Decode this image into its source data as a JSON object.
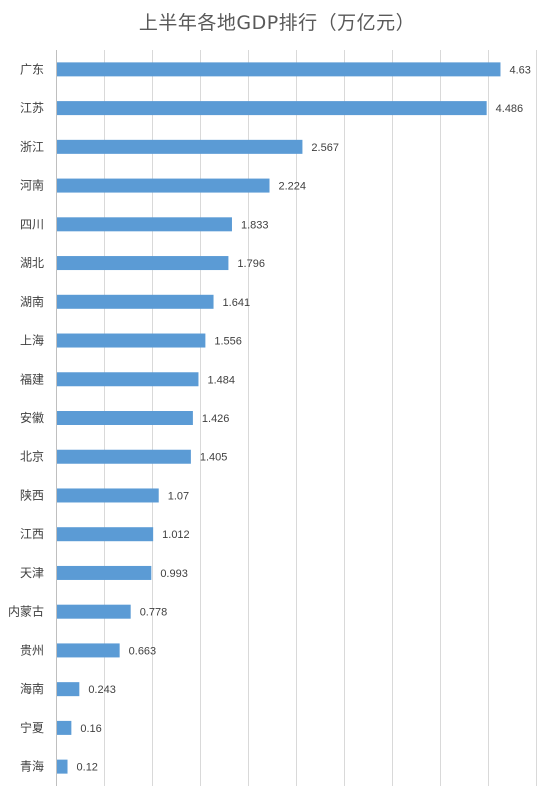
{
  "chart_data": {
    "type": "bar",
    "orientation": "horizontal",
    "title": "上半年各地GDP排行（万亿元）",
    "categories": [
      "广东",
      "江苏",
      "浙江",
      "河南",
      "四川",
      "湖北",
      "湖南",
      "上海",
      "福建",
      "安徽",
      "北京",
      "陕西",
      "江西",
      "天津",
      "内蒙古",
      "贵州",
      "海南",
      "宁夏",
      "青海"
    ],
    "values": [
      4.63,
      4.486,
      2.567,
      2.224,
      1.833,
      1.796,
      1.641,
      1.556,
      1.484,
      1.426,
      1.405,
      1.07,
      1.012,
      0.993,
      0.778,
      0.663,
      0.243,
      0.16,
      0.12
    ],
    "value_labels": [
      "4.63",
      "4.486",
      "2.567",
      "2.224",
      "1.833",
      "1.796",
      "1.641",
      "1.556",
      "1.484",
      "1.426",
      "1.405",
      "1.07",
      "1.012",
      "0.993",
      "0.778",
      "0.663",
      "0.243",
      "0.16",
      "0.12"
    ],
    "xlim": [
      0,
      5
    ],
    "grid": true,
    "legend": "none",
    "bar_color": "#5b9bd5"
  }
}
